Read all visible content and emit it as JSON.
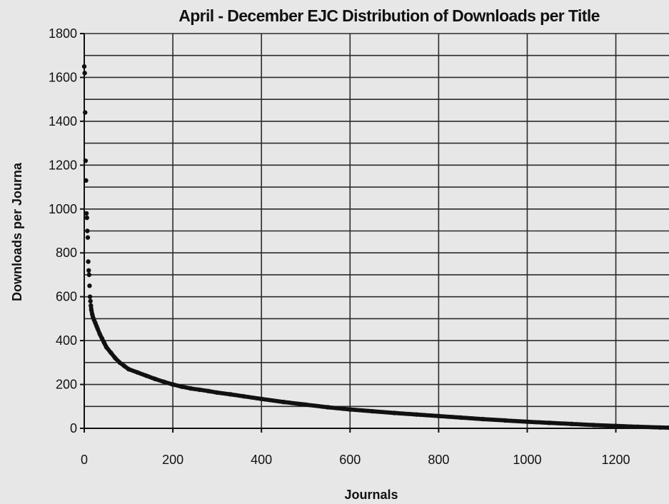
{
  "chart_data": {
    "type": "scatter",
    "title": "April - December EJC Distribution of Downloads per Title",
    "xlabel": "Journals",
    "ylabel": "Downloads per Journa",
    "xlim": [
      0,
      1320
    ],
    "ylim": [
      0,
      1800
    ],
    "xticks": [
      "0",
      "200",
      "400",
      "600",
      "800",
      "1000",
      "1200"
    ],
    "xtick_values": [
      0,
      200,
      400,
      600,
      800,
      1000,
      1200
    ],
    "yticks": [
      "0",
      "200",
      "400",
      "600",
      "800",
      "1000",
      "1200",
      "1400",
      "1600",
      "1800"
    ],
    "ytick_values": [
      0,
      200,
      400,
      600,
      800,
      1000,
      1200,
      1400,
      1600,
      1800
    ],
    "grid": true,
    "y_grid_step": 100,
    "legend": "none",
    "series": [
      {
        "color": "#111111",
        "x": [
          0,
          1,
          2,
          3,
          4,
          5,
          6,
          7,
          8,
          9,
          10,
          11,
          12,
          13,
          14,
          15,
          16,
          18,
          20,
          22,
          25,
          28,
          30,
          35,
          40,
          45,
          50,
          60,
          70,
          80,
          90,
          100,
          120,
          140,
          160,
          180,
          200,
          220,
          240,
          260,
          280,
          300,
          330,
          360,
          400,
          450,
          500,
          550,
          600,
          650,
          700,
          750,
          800,
          850,
          900,
          950,
          1000,
          1050,
          1100,
          1150,
          1200,
          1250,
          1300,
          1320
        ],
        "y": [
          1650,
          1620,
          1440,
          1220,
          1130,
          980,
          960,
          900,
          870,
          760,
          720,
          700,
          650,
          600,
          580,
          560,
          540,
          520,
          505,
          495,
          480,
          465,
          455,
          430,
          410,
          390,
          370,
          345,
          320,
          300,
          285,
          270,
          255,
          240,
          225,
          212,
          200,
          190,
          182,
          176,
          170,
          163,
          155,
          146,
          134,
          120,
          108,
          96,
          86,
          78,
          70,
          63,
          56,
          49,
          42,
          36,
          30,
          25,
          20,
          15,
          11,
          7,
          4,
          3
        ]
      }
    ]
  }
}
